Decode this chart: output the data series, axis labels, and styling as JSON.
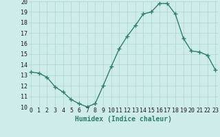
{
  "x": [
    0,
    1,
    2,
    3,
    4,
    5,
    6,
    7,
    8,
    9,
    10,
    11,
    12,
    13,
    14,
    15,
    16,
    17,
    18,
    19,
    20,
    21,
    22,
    23
  ],
  "y": [
    13.3,
    13.2,
    12.8,
    11.9,
    11.4,
    10.7,
    10.3,
    10.0,
    10.3,
    12.0,
    13.8,
    15.5,
    16.7,
    17.7,
    18.8,
    19.0,
    19.8,
    19.8,
    18.8,
    16.5,
    15.3,
    15.2,
    14.9,
    13.5
  ],
  "line_color": "#2e7d6e",
  "marker": "+",
  "marker_size": 4,
  "linewidth": 1.0,
  "bg_color": "#ceecea",
  "grid_color": "#aed4d0",
  "xlabel": "Humidex (Indice chaleur)",
  "xlabel_fontsize": 7,
  "tick_fontsize": 6,
  "ylim": [
    10,
    20
  ],
  "xlim": [
    -0.3,
    23.3
  ],
  "yticks": [
    10,
    11,
    12,
    13,
    14,
    15,
    16,
    17,
    18,
    19,
    20
  ],
  "xticks": [
    0,
    1,
    2,
    3,
    4,
    5,
    6,
    7,
    8,
    9,
    10,
    11,
    12,
    13,
    14,
    15,
    16,
    17,
    18,
    19,
    20,
    21,
    22,
    23
  ]
}
